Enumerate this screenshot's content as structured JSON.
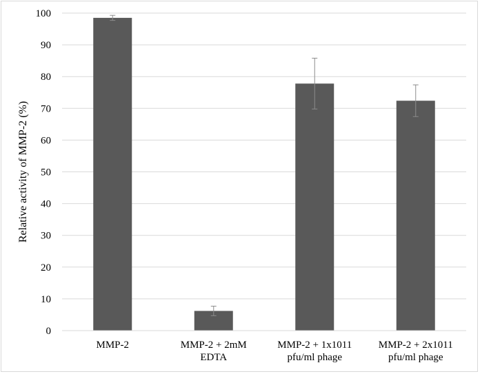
{
  "chart_data": {
    "type": "bar",
    "title": "",
    "xlabel": "",
    "ylabel": "Relative activity of MMP-2 (%)",
    "ylim": [
      0,
      100
    ],
    "yticks": [
      0,
      10,
      20,
      30,
      40,
      50,
      60,
      70,
      80,
      90,
      100
    ],
    "grid": true,
    "bar_color": "#595959",
    "categories": [
      [
        "MMP-2"
      ],
      [
        "MMP-2 + 2mM",
        "EDTA"
      ],
      [
        "MMP-2 + 1x1011",
        "pfu/ml phage"
      ],
      [
        "MMP-2 + 2x1011",
        "pfu/ml phage"
      ]
    ],
    "values": [
      98.5,
      6.2,
      77.8,
      72.4
    ],
    "errors": [
      0.8,
      1.5,
      8.0,
      5.0
    ]
  }
}
